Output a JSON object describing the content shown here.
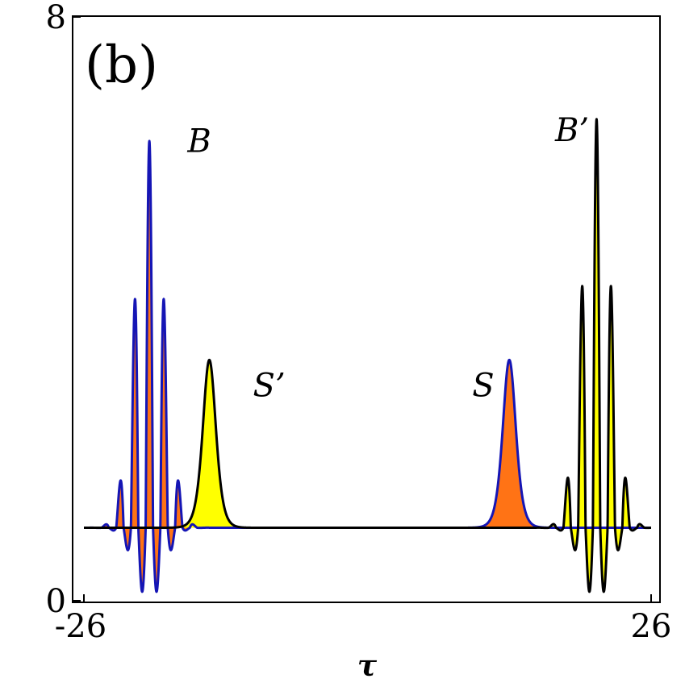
{
  "chart_data": {
    "type": "line",
    "panel_label": "(b)",
    "xlabel": "τ",
    "ylabel": "",
    "xlim": [
      -26,
      26
    ],
    "ylim": [
      0,
      8
    ],
    "x_ticks": [
      {
        "value": -26,
        "label": "-26"
      },
      {
        "value": 26,
        "label": "26"
      }
    ],
    "y_ticks": [
      {
        "value": 0,
        "label": "0"
      },
      {
        "value": 8,
        "label": "8"
      }
    ],
    "baseline": 1.0,
    "grid": false,
    "colors": {
      "blue_curve": "#1515b5",
      "black_curve": "#000000",
      "orange_fill": "#ff7315",
      "yellow_fill": "#ffff00"
    },
    "series": [
      {
        "curve": "blue",
        "fill": "orange",
        "components": [
          {
            "kind": "breather",
            "center": -20.0,
            "peak": 6.3,
            "min": 0.0,
            "oscillation_period": 1.35,
            "decay_width": 1.3
          },
          {
            "kind": "soliton",
            "center": 13.0,
            "peak": 3.3,
            "width": 0.8
          }
        ]
      },
      {
        "curve": "black",
        "fill": "yellow",
        "components": [
          {
            "kind": "soliton",
            "center": -14.5,
            "peak": 3.3,
            "width": 0.8
          },
          {
            "kind": "breather",
            "center": 21.0,
            "peak": 6.6,
            "min": 0.0,
            "oscillation_period": 1.35,
            "decay_width": 1.3
          }
        ]
      }
    ],
    "annotations": [
      {
        "text": "B",
        "x": -16.5,
        "y": 6.15
      },
      {
        "text": "S’",
        "x": -10.5,
        "y": 2.8
      },
      {
        "text": "S",
        "x": 9.6,
        "y": 2.8
      },
      {
        "text": "B’",
        "x": 17.2,
        "y": 6.3
      }
    ]
  }
}
